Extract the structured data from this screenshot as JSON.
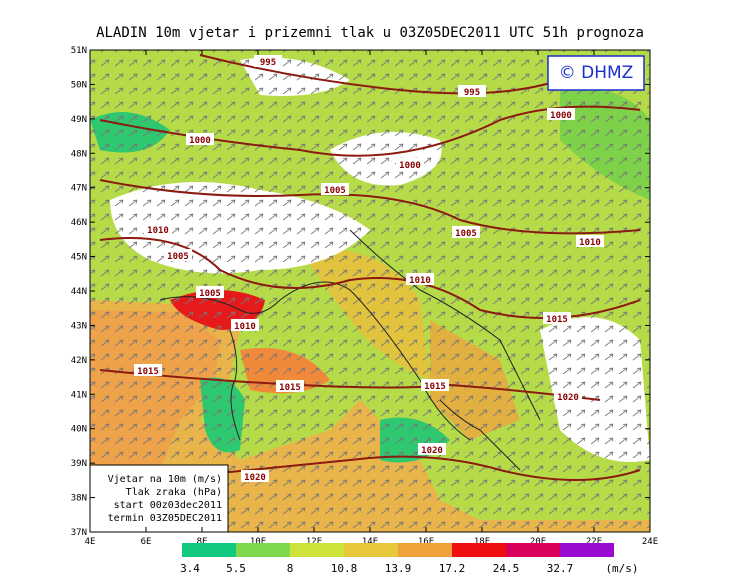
{
  "header": {
    "title": "ALADIN 10m vjetar i prizemni tlak u 03Z05DEC2011 UTC 51h prognoza"
  },
  "copyright": "© DHMZ",
  "latitude_labels": [
    "51N",
    "50N",
    "49N",
    "48N",
    "47N",
    "46N",
    "45N",
    "44N",
    "43N",
    "42N",
    "41N",
    "40N",
    "39N",
    "38N",
    "37N"
  ],
  "longitude_labels": [
    "4E",
    "6E",
    "8E",
    "10E",
    "12E",
    "14E",
    "16E",
    "18E",
    "20E",
    "22E",
    "24E"
  ],
  "isobar_labels": [
    "995",
    "995",
    "1000",
    "1000",
    "1000",
    "1005",
    "1010",
    "1005",
    "1010",
    "1005",
    "1010",
    "1005",
    "1010",
    "1015",
    "1015",
    "1015",
    "1015",
    "1020",
    "1020",
    "1020"
  ],
  "legend_box": [
    "Vjetar na 10m (m/s)",
    "Tlak zraka (hPa)",
    "start 00z03dec2011",
    "termin 03Z05DEC2011"
  ],
  "colorbar": {
    "labels": [
      "3.4",
      "5.5",
      "8",
      "10.8",
      "13.9",
      "17.2",
      "24.5",
      "32.7"
    ],
    "unit": "(m/s)"
  }
}
